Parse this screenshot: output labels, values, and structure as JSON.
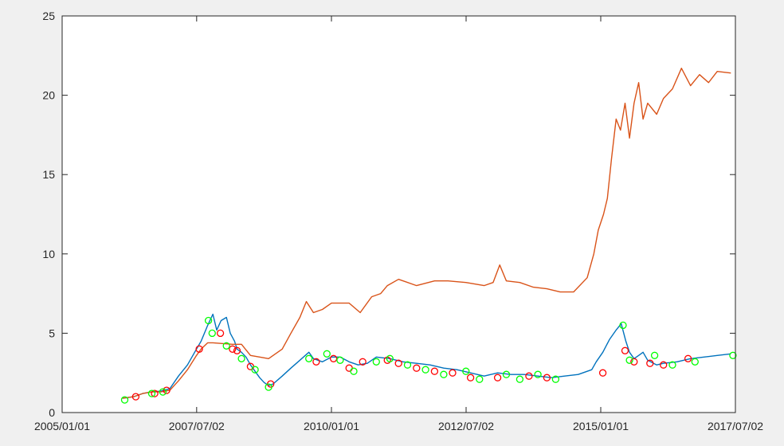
{
  "chart_data": {
    "type": "line",
    "title": "",
    "xlabel": "",
    "ylabel": "",
    "x_ticks": [
      "2005/01/01",
      "2007/07/02",
      "2010/01/01",
      "2012/07/02",
      "2015/01/01",
      "2017/07/02"
    ],
    "x_range": [
      "2005/01/01",
      "2017/07/02"
    ],
    "y_ticks": [
      "0",
      "5",
      "10",
      "15",
      "20",
      "25"
    ],
    "ylim": [
      0,
      25
    ],
    "grid": false,
    "colors": {
      "series_blue": "#0072bd",
      "series_orange": "#d95319",
      "marker_red": "#ff0000",
      "marker_green": "#00ff00",
      "axes": "#262626",
      "plot_bg": "#ffffff",
      "figure_bg": "#f0f0f0"
    },
    "series": [
      {
        "style": "line",
        "color": "#0072bd",
        "points": [
          [
            "2006/02/15",
            0.9
          ],
          [
            "2006/05/01",
            1.0
          ],
          [
            "2006/07/01",
            1.2
          ],
          [
            "2006/09/01",
            1.3
          ],
          [
            "2006/11/01",
            1.35
          ],
          [
            "2007/01/01",
            1.5
          ],
          [
            "2007/03/01",
            2.3
          ],
          [
            "2007/05/01",
            3.0
          ],
          [
            "2007/07/01",
            4.0
          ],
          [
            "2007/08/01",
            4.5
          ],
          [
            "2007/09/15",
            5.5
          ],
          [
            "2007/10/20",
            6.2
          ],
          [
            "2007/11/15",
            5.2
          ],
          [
            "2007/12/15",
            5.8
          ],
          [
            "2008/01/20",
            6.0
          ],
          [
            "2008/02/15",
            5.0
          ],
          [
            "2008/03/15",
            4.5
          ],
          [
            "2008/04/01",
            4.0
          ],
          [
            "2008/05/01",
            3.8
          ],
          [
            "2008/06/01",
            3.5
          ],
          [
            "2008/07/01",
            3.0
          ],
          [
            "2008/08/01",
            2.6
          ],
          [
            "2008/09/01",
            2.2
          ],
          [
            "2008/10/01",
            1.9
          ],
          [
            "2008/11/01",
            1.7
          ],
          [
            "2008/12/01",
            1.8
          ],
          [
            "2009/02/01",
            2.3
          ],
          [
            "2009/04/01",
            2.8
          ],
          [
            "2009/06/01",
            3.3
          ],
          [
            "2009/08/01",
            3.8
          ],
          [
            "2009/09/01",
            3.4
          ],
          [
            "2009/11/01",
            3.2
          ],
          [
            "2010/01/01",
            3.5
          ],
          [
            "2010/03/01",
            3.5
          ],
          [
            "2010/05/01",
            3.2
          ],
          [
            "2010/07/01",
            3.0
          ],
          [
            "2010/09/01",
            3.1
          ],
          [
            "2010/11/01",
            3.5
          ],
          [
            "2011/02/01",
            3.4
          ],
          [
            "2011/05/01",
            3.2
          ],
          [
            "2011/08/01",
            3.1
          ],
          [
            "2011/11/01",
            3.0
          ],
          [
            "2012/02/01",
            2.8
          ],
          [
            "2012/05/01",
            2.7
          ],
          [
            "2012/08/01",
            2.5
          ],
          [
            "2012/11/01",
            2.3
          ],
          [
            "2013/02/01",
            2.5
          ],
          [
            "2013/05/01",
            2.4
          ],
          [
            "2013/08/01",
            2.4
          ],
          [
            "2013/11/01",
            2.3
          ],
          [
            "2014/02/01",
            2.2
          ],
          [
            "2014/05/01",
            2.3
          ],
          [
            "2014/08/01",
            2.4
          ],
          [
            "2014/11/01",
            2.7
          ],
          [
            "2014/12/01",
            3.2
          ],
          [
            "2015/01/15",
            3.8
          ],
          [
            "2015/03/01",
            4.6
          ],
          [
            "2015/04/15",
            5.2
          ],
          [
            "2015/05/20",
            5.6
          ],
          [
            "2015/06/20",
            4.5
          ],
          [
            "2015/07/15",
            3.8
          ],
          [
            "2015/08/15",
            3.4
          ],
          [
            "2015/09/15",
            3.6
          ],
          [
            "2015/10/15",
            3.8
          ],
          [
            "2015/11/15",
            3.3
          ],
          [
            "2016/01/15",
            3.0
          ],
          [
            "2016/03/01",
            3.1
          ],
          [
            "2016/06/01",
            3.2
          ],
          [
            "2016/09/01",
            3.4
          ],
          [
            "2016/12/01",
            3.5
          ],
          [
            "2017/03/01",
            3.6
          ],
          [
            "2017/06/01",
            3.7
          ]
        ]
      },
      {
        "style": "line",
        "color": "#d95319",
        "points": [
          [
            "2006/02/15",
            0.9
          ],
          [
            "2006/05/01",
            1.0
          ],
          [
            "2006/07/01",
            1.2
          ],
          [
            "2006/09/01",
            1.3
          ],
          [
            "2006/11/01",
            1.3
          ],
          [
            "2007/01/01",
            1.4
          ],
          [
            "2007/03/01",
            2.0
          ],
          [
            "2007/05/01",
            2.7
          ],
          [
            "2007/07/01",
            3.6
          ],
          [
            "2007/08/01",
            4.0
          ],
          [
            "2007/09/15",
            4.4
          ],
          [
            "2007/10/20",
            4.4
          ],
          [
            "2008/03/01",
            4.3
          ],
          [
            "2008/05/01",
            4.3
          ],
          [
            "2008/07/01",
            3.6
          ],
          [
            "2008/09/01",
            3.5
          ],
          [
            "2008/11/01",
            3.4
          ],
          [
            "2009/02/01",
            4.0
          ],
          [
            "2009/04/01",
            5.0
          ],
          [
            "2009/06/01",
            6.0
          ],
          [
            "2009/07/15",
            7.0
          ],
          [
            "2009/09/01",
            6.3
          ],
          [
            "2009/11/01",
            6.5
          ],
          [
            "2010/01/01",
            6.9
          ],
          [
            "2010/05/01",
            6.9
          ],
          [
            "2010/07/15",
            6.3
          ],
          [
            "2010/10/01",
            7.3
          ],
          [
            "2010/12/01",
            7.5
          ],
          [
            "2011/01/15",
            8.0
          ],
          [
            "2011/04/01",
            8.4
          ],
          [
            "2011/08/01",
            8.0
          ],
          [
            "2011/12/01",
            8.3
          ],
          [
            "2012/03/01",
            8.3
          ],
          [
            "2012/07/01",
            8.2
          ],
          [
            "2012/11/01",
            8.0
          ],
          [
            "2013/01/01",
            8.2
          ],
          [
            "2013/02/15",
            9.3
          ],
          [
            "2013/04/01",
            8.3
          ],
          [
            "2013/07/01",
            8.2
          ],
          [
            "2013/10/01",
            7.9
          ],
          [
            "2014/01/01",
            7.8
          ],
          [
            "2014/04/01",
            7.6
          ],
          [
            "2014/07/01",
            7.6
          ],
          [
            "2014/10/01",
            8.5
          ],
          [
            "2014/11/15",
            10.0
          ],
          [
            "2014/12/15",
            11.5
          ],
          [
            "2015/01/20",
            12.5
          ],
          [
            "2015/02/15",
            13.5
          ],
          [
            "2015/03/15",
            16.0
          ],
          [
            "2015/04/15",
            18.5
          ],
          [
            "2015/05/15",
            17.8
          ],
          [
            "2015/06/15",
            19.5
          ],
          [
            "2015/07/15",
            17.3
          ],
          [
            "2015/08/15",
            19.5
          ],
          [
            "2015/09/15",
            20.8
          ],
          [
            "2015/10/15",
            18.5
          ],
          [
            "2015/11/15",
            19.5
          ],
          [
            "2016/01/15",
            18.8
          ],
          [
            "2016/03/01",
            19.8
          ],
          [
            "2016/05/01",
            20.4
          ],
          [
            "2016/07/01",
            21.7
          ],
          [
            "2016/09/01",
            20.6
          ],
          [
            "2016/11/01",
            21.3
          ],
          [
            "2017/01/01",
            20.8
          ],
          [
            "2017/03/01",
            21.5
          ],
          [
            "2017/06/01",
            21.4
          ]
        ]
      },
      {
        "style": "markers",
        "color": "#ff0000",
        "points": [
          [
            "2006/05/15",
            1.0
          ],
          [
            "2006/09/20",
            1.2
          ],
          [
            "2006/12/10",
            1.4
          ],
          [
            "2007/07/20",
            4.0
          ],
          [
            "2007/12/10",
            5.0
          ],
          [
            "2008/03/01",
            4.0
          ],
          [
            "2008/04/01",
            3.9
          ],
          [
            "2008/07/01",
            2.9
          ],
          [
            "2008/11/15",
            1.8
          ],
          [
            "2009/09/20",
            3.2
          ],
          [
            "2010/01/15",
            3.4
          ],
          [
            "2010/05/01",
            2.8
          ],
          [
            "2010/08/01",
            3.2
          ],
          [
            "2011/01/15",
            3.3
          ],
          [
            "2011/04/01",
            3.1
          ],
          [
            "2011/08/01",
            2.8
          ],
          [
            "2011/12/01",
            2.6
          ],
          [
            "2012/04/01",
            2.5
          ],
          [
            "2012/08/01",
            2.2
          ],
          [
            "2013/02/01",
            2.2
          ],
          [
            "2013/09/01",
            2.3
          ],
          [
            "2014/01/01",
            2.2
          ],
          [
            "2015/01/15",
            2.5
          ],
          [
            "2015/06/15",
            3.9
          ],
          [
            "2015/08/15",
            3.2
          ],
          [
            "2015/12/01",
            3.1
          ],
          [
            "2016/03/01",
            3.0
          ],
          [
            "2016/08/15",
            3.4
          ]
        ]
      },
      {
        "style": "markers",
        "color": "#00ff00",
        "points": [
          [
            "2006/03/01",
            0.8
          ],
          [
            "2006/09/01",
            1.2
          ],
          [
            "2006/11/15",
            1.3
          ],
          [
            "2007/09/20",
            5.8
          ],
          [
            "2007/10/15",
            5.0
          ],
          [
            "2008/01/20",
            4.2
          ],
          [
            "2008/05/01",
            3.4
          ],
          [
            "2008/08/01",
            2.7
          ],
          [
            "2008/11/01",
            1.6
          ],
          [
            "2009/08/01",
            3.4
          ],
          [
            "2009/12/01",
            3.7
          ],
          [
            "2010/03/01",
            3.3
          ],
          [
            "2010/06/01",
            2.6
          ],
          [
            "2010/11/01",
            3.2
          ],
          [
            "2011/02/01",
            3.4
          ],
          [
            "2011/06/01",
            3.0
          ],
          [
            "2011/10/01",
            2.7
          ],
          [
            "2012/02/01",
            2.4
          ],
          [
            "2012/07/01",
            2.6
          ],
          [
            "2012/10/01",
            2.1
          ],
          [
            "2013/04/01",
            2.4
          ],
          [
            "2013/07/01",
            2.1
          ],
          [
            "2013/11/01",
            2.4
          ],
          [
            "2014/03/01",
            2.1
          ],
          [
            "2015/06/01",
            5.5
          ],
          [
            "2015/07/15",
            3.3
          ],
          [
            "2016/01/01",
            3.6
          ],
          [
            "2016/05/01",
            3.0
          ],
          [
            "2016/10/01",
            3.2
          ],
          [
            "2017/06/15",
            3.6
          ]
        ]
      }
    ]
  }
}
